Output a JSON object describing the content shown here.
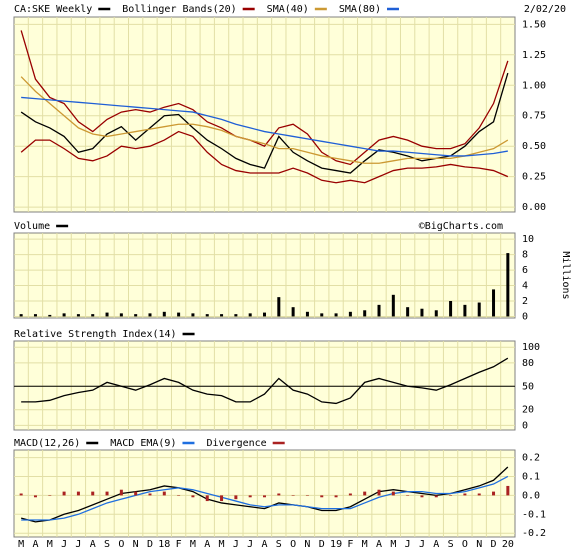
{
  "chart_data": [
    {
      "type": "line",
      "date": "2/02/20",
      "ylim": [
        -0.04,
        1.56
      ],
      "yticks": [
        {
          "value": 0,
          "label": "0.00"
        },
        {
          "value": 0.25,
          "label": "0.25"
        },
        {
          "value": 0.5,
          "label": "0.50"
        },
        {
          "value": 0.75,
          "label": "0.75"
        },
        {
          "value": 1,
          "label": "1.00"
        },
        {
          "value": 1.25,
          "label": "1.25"
        },
        {
          "value": 1.5,
          "label": "1.50"
        }
      ],
      "series": [
        {
          "name": "CA:SKE Weekly",
          "color": "#000000",
          "values": [
            0.78,
            0.7,
            0.65,
            0.58,
            0.45,
            0.48,
            0.6,
            0.66,
            0.55,
            0.65,
            0.75,
            0.76,
            0.65,
            0.55,
            0.48,
            0.4,
            0.35,
            0.32,
            0.58,
            0.45,
            0.38,
            0.32,
            0.3,
            0.28,
            0.38,
            0.47,
            0.45,
            0.42,
            0.38,
            0.4,
            0.42,
            0.5,
            0.62,
            0.7,
            1.1
          ]
        },
        {
          "name": "Bollinger Bands(20)",
          "color": "#990000",
          "upper": [
            1.45,
            1.05,
            0.9,
            0.85,
            0.7,
            0.62,
            0.72,
            0.78,
            0.8,
            0.78,
            0.82,
            0.85,
            0.8,
            0.7,
            0.65,
            0.58,
            0.55,
            0.5,
            0.65,
            0.68,
            0.6,
            0.45,
            0.38,
            0.35,
            0.45,
            0.55,
            0.58,
            0.55,
            0.5,
            0.48,
            0.48,
            0.52,
            0.65,
            0.85,
            1.2
          ],
          "lower": [
            0.45,
            0.55,
            0.55,
            0.48,
            0.4,
            0.38,
            0.42,
            0.5,
            0.48,
            0.5,
            0.55,
            0.62,
            0.58,
            0.45,
            0.35,
            0.3,
            0.28,
            0.28,
            0.28,
            0.32,
            0.28,
            0.22,
            0.2,
            0.22,
            0.2,
            0.25,
            0.3,
            0.32,
            0.32,
            0.33,
            0.35,
            0.33,
            0.32,
            0.3,
            0.25
          ]
        },
        {
          "name": "SMA(40)",
          "color": "#cc9933",
          "values": [
            1.07,
            0.95,
            0.85,
            0.75,
            0.65,
            0.6,
            0.58,
            0.6,
            0.62,
            0.64,
            0.66,
            0.68,
            0.68,
            0.66,
            0.63,
            0.58,
            0.55,
            0.52,
            0.48,
            0.48,
            0.45,
            0.42,
            0.4,
            0.38,
            0.36,
            0.36,
            0.38,
            0.4,
            0.4,
            0.4,
            0.4,
            0.42,
            0.45,
            0.48,
            0.55
          ]
        },
        {
          "name": "SMA(80)",
          "color": "#1f5fd6",
          "values": [
            0.9,
            0.89,
            0.88,
            0.87,
            0.86,
            0.85,
            0.84,
            0.83,
            0.82,
            0.81,
            0.8,
            0.79,
            0.78,
            0.75,
            0.72,
            0.68,
            0.65,
            0.62,
            0.6,
            0.58,
            0.56,
            0.54,
            0.52,
            0.5,
            0.48,
            0.46,
            0.46,
            0.45,
            0.44,
            0.43,
            0.42,
            0.42,
            0.43,
            0.44,
            0.46
          ]
        }
      ]
    },
    {
      "type": "bar",
      "credit": "©BigCharts.com",
      "ylabel": "Millions",
      "ylim": [
        -0.2,
        10.8
      ],
      "yticks": [
        0,
        2,
        4,
        6,
        8,
        10
      ],
      "series": [
        {
          "name": "Volume",
          "color": "#000000",
          "values": [
            0.3,
            0.3,
            0.2,
            0.4,
            0.3,
            0.3,
            0.5,
            0.4,
            0.3,
            0.4,
            0.6,
            0.5,
            0.4,
            0.3,
            0.3,
            0.3,
            0.4,
            0.5,
            2.5,
            1.2,
            0.6,
            0.4,
            0.4,
            0.6,
            0.8,
            1.5,
            2.8,
            1.2,
            1.0,
            0.8,
            2.0,
            1.5,
            1.8,
            3.5,
            8.2
          ]
        }
      ]
    },
    {
      "type": "line",
      "ylim": [
        -6,
        108
      ],
      "yticks": [
        0,
        20,
        50,
        80,
        100
      ],
      "hline": 50,
      "series": [
        {
          "name": "Relative Strength Index(14)",
          "color": "#000000",
          "values": [
            30,
            30,
            32,
            38,
            42,
            45,
            55,
            50,
            45,
            52,
            60,
            55,
            45,
            40,
            38,
            30,
            30,
            40,
            60,
            45,
            40,
            30,
            28,
            35,
            55,
            60,
            55,
            50,
            48,
            45,
            52,
            60,
            68,
            75,
            86
          ]
        }
      ]
    },
    {
      "type": "line",
      "ylim": [
        -0.22,
        0.24
      ],
      "yticks": [
        -0.2,
        -0.1,
        {
          "value": 0,
          "label": "0.0"
        },
        0.1,
        0.2
      ],
      "categories": [
        "M",
        "A",
        "M",
        "J",
        "J",
        "A",
        "S",
        "O",
        "N",
        "D",
        "18",
        "F",
        "M",
        "A",
        "M",
        "J",
        "J",
        "A",
        "S",
        "O",
        "N",
        "D",
        "19",
        "F",
        "M",
        "A",
        "M",
        "J",
        "J",
        "A",
        "S",
        "O",
        "N",
        "D",
        "20"
      ],
      "series": [
        {
          "name": "MACD(12,26)",
          "color": "#000000",
          "values": [
            -0.12,
            -0.14,
            -0.13,
            -0.1,
            -0.08,
            -0.05,
            -0.02,
            0.01,
            0.02,
            0.03,
            0.05,
            0.04,
            0.02,
            -0.02,
            -0.04,
            -0.05,
            -0.06,
            -0.07,
            -0.04,
            -0.05,
            -0.06,
            -0.08,
            -0.08,
            -0.06,
            -0.02,
            0.02,
            0.03,
            0.02,
            0.01,
            0.0,
            0.01,
            0.03,
            0.05,
            0.08,
            0.15
          ]
        },
        {
          "name": "MACD EMA(9)",
          "color": "#1f6fe0",
          "values": [
            -0.13,
            -0.13,
            -0.13,
            -0.12,
            -0.1,
            -0.07,
            -0.04,
            -0.02,
            0.0,
            0.02,
            0.03,
            0.04,
            0.03,
            0.01,
            -0.01,
            -0.03,
            -0.05,
            -0.06,
            -0.05,
            -0.05,
            -0.06,
            -0.07,
            -0.07,
            -0.07,
            -0.04,
            -0.01,
            0.01,
            0.02,
            0.02,
            0.01,
            0.01,
            0.02,
            0.04,
            0.06,
            0.1
          ]
        },
        {
          "name": "Divergence",
          "color": "#aa2222",
          "style": "bar",
          "values": [
            0.01,
            -0.01,
            0.0,
            0.02,
            0.02,
            0.02,
            0.02,
            0.03,
            0.02,
            0.01,
            0.02,
            0.0,
            -0.01,
            -0.03,
            -0.03,
            -0.02,
            -0.01,
            -0.01,
            0.01,
            0.0,
            0.0,
            -0.01,
            -0.01,
            0.01,
            0.02,
            0.03,
            0.02,
            0.0,
            -0.01,
            -0.01,
            0.0,
            0.01,
            0.01,
            0.02,
            0.05
          ]
        }
      ]
    }
  ]
}
